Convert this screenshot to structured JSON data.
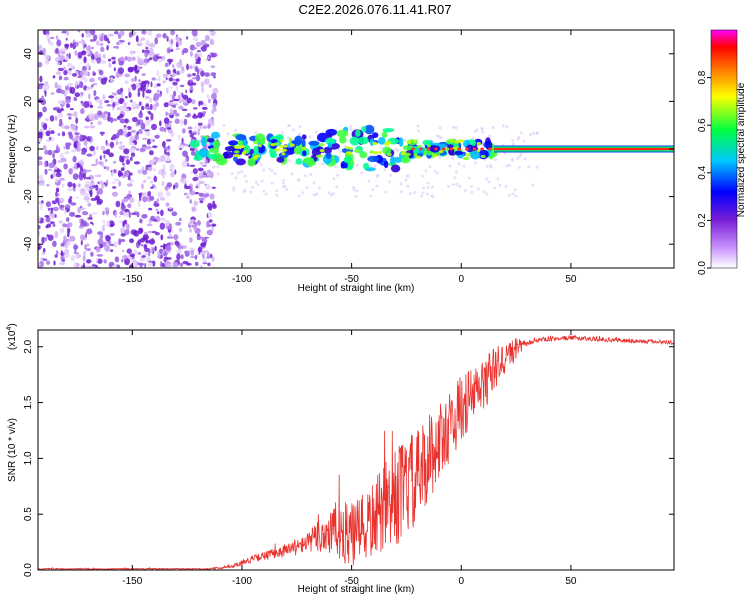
{
  "title": "C2E2.2026.076.11.41.R07",
  "colors": {
    "spec_background": "#ffffff",
    "snr_line": "#e8322e",
    "frame": "#000000"
  },
  "chart_data": [
    {
      "type": "heatmap",
      "name": "spectrogram",
      "xlabel": "Height of straight line (km)",
      "ylabel": "Frequency (Hz)",
      "xlim": [
        -193,
        97
      ],
      "ylim": [
        -50,
        50
      ],
      "xticks": [
        -150,
        -100,
        -50,
        0,
        50
      ],
      "yticks": [
        -40,
        -20,
        0,
        20,
        40
      ],
      "colorbar": {
        "label": "Normalized spectral amplitude",
        "range": [
          0,
          1
        ],
        "ticks": [
          0.0,
          0.2,
          0.4,
          0.6,
          0.8
        ],
        "tick_labels": [
          "0.0",
          "0.2",
          "0.4",
          "0.6",
          "0.8"
        ],
        "colormap": [
          "#ffffff",
          "#8a2be2",
          "#0000ff",
          "#00ffff",
          "#00ff00",
          "#ffff00",
          "#ff8000",
          "#ff0000",
          "#ff00ff"
        ]
      },
      "regions": [
        {
          "name": "noise",
          "x_range": [
            -193,
            -112
          ],
          "freq_range": [
            -50,
            50
          ],
          "amplitude": 0.1
        },
        {
          "name": "band",
          "x_range": [
            -122,
            15
          ],
          "freq_range": [
            -12,
            10
          ],
          "amplitude": 0.45
        },
        {
          "name": "carrier",
          "x_range": [
            15,
            97
          ],
          "freq": 0,
          "amplitude": 0.95
        }
      ]
    },
    {
      "type": "line",
      "name": "snr",
      "xlabel": "Height of straight line (km)",
      "ylabel": "SNR (10 * v/v)",
      "ylabel_exponent": "(x10",
      "ylabel_exponent_power": "4",
      "exponent_close": ")",
      "xlim": [
        -193,
        97
      ],
      "ylim": [
        0,
        2.15
      ],
      "xticks": [
        -150,
        -100,
        -50,
        0,
        50
      ],
      "yticks": [
        0.0,
        0.5,
        1.0,
        1.5,
        2.0
      ],
      "ytick_labels": [
        "0.0",
        "0.5",
        "1.0",
        "1.5",
        "2.0"
      ],
      "series": [
        {
          "name": "SNR",
          "envelope_x": [
            -193,
            -115,
            -105,
            -95,
            -85,
            -75,
            -65,
            -60,
            -55,
            -50,
            -45,
            -40,
            -35,
            -30,
            -25,
            -20,
            -15,
            -10,
            -5,
            0,
            5,
            10,
            15,
            20,
            25,
            30,
            35,
            40,
            50,
            60,
            70,
            80,
            97
          ],
          "envelope_y": [
            0.01,
            0.01,
            0.03,
            0.1,
            0.15,
            0.2,
            0.3,
            0.35,
            0.35,
            0.3,
            0.35,
            0.45,
            0.55,
            0.65,
            0.75,
            0.8,
            1.0,
            1.15,
            1.3,
            1.45,
            1.55,
            1.65,
            1.8,
            1.9,
            1.98,
            2.03,
            2.06,
            2.07,
            2.08,
            2.07,
            2.06,
            2.05,
            2.04
          ],
          "noise_amplitude_x": [
            -193,
            -115,
            -100,
            -70,
            -60,
            -50,
            -40,
            -30,
            -20,
            -10,
            0,
            10,
            20,
            25,
            30,
            97
          ],
          "noise_amplitude_y": [
            0.005,
            0.005,
            0.02,
            0.08,
            0.25,
            0.3,
            0.35,
            0.45,
            0.45,
            0.35,
            0.3,
            0.25,
            0.15,
            0.1,
            0.02,
            0.02
          ]
        }
      ]
    }
  ]
}
